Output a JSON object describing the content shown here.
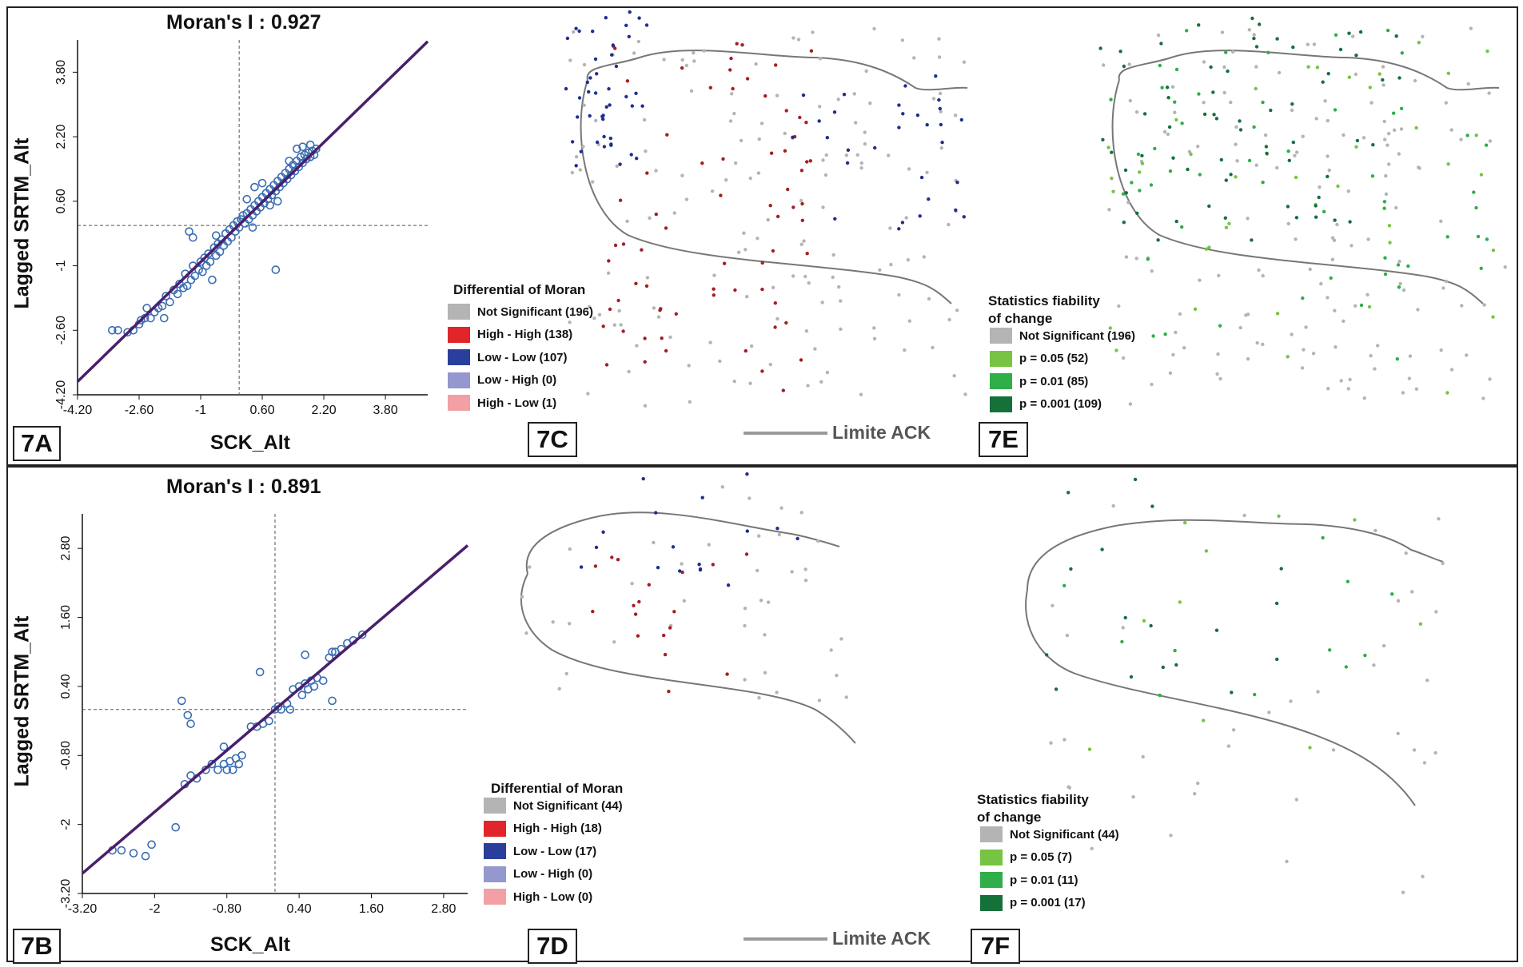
{
  "panels": {
    "a": {
      "tag": "7A",
      "moran_label": "Moran's I : 0.927",
      "xlabel": "SCK_Alt",
      "ylabel": "Lagged SRTM_Alt"
    },
    "b": {
      "tag": "7B",
      "moran_label": "Moran's I : 0.891",
      "xlabel": "SCK_Alt",
      "ylabel": "Lagged SRTM_Alt"
    },
    "c": {
      "tag": "7C",
      "legend_title": "Differential of Moran",
      "legend": [
        {
          "label": "Not Significant (196)",
          "color": "#b4b4b4"
        },
        {
          "label": "High - High (138)",
          "color": "#e0262b"
        },
        {
          "label": "Low - Low (107)",
          "color": "#2a3f9b"
        },
        {
          "label": "Low - High (0)",
          "color": "#9597cf"
        },
        {
          "label": "High - Low (1)",
          "color": "#f2a0a4"
        }
      ],
      "limit_label": "Limite ACK"
    },
    "d": {
      "tag": "7D",
      "legend_title": "Differential of Moran",
      "legend": [
        {
          "label": "Not Significant (44)",
          "color": "#b4b4b4"
        },
        {
          "label": "High - High (18)",
          "color": "#e0262b"
        },
        {
          "label": "Low - Low (17)",
          "color": "#2a3f9b"
        },
        {
          "label": "Low - High (0)",
          "color": "#9597cf"
        },
        {
          "label": "High - Low (0)",
          "color": "#f2a0a4"
        }
      ],
      "limit_label": "Limite ACK"
    },
    "e": {
      "tag": "7E",
      "legend_title_1": "Statistics fiability",
      "legend_title_2": "of change",
      "legend": [
        {
          "label": "Not Significant (196)",
          "color": "#b4b4b4"
        },
        {
          "label": "p = 0.05 (52)",
          "color": "#76c442"
        },
        {
          "label": "p = 0.01 (85)",
          "color": "#2fae49"
        },
        {
          "label": "p = 0.001 (109)",
          "color": "#16703a"
        }
      ]
    },
    "f": {
      "tag": "7F",
      "legend_title_1": "Statistics fiability",
      "legend_title_2": "of change",
      "legend": [
        {
          "label": "Not Significant (44)",
          "color": "#b4b4b4"
        },
        {
          "label": "p = 0.05 (7)",
          "color": "#76c442"
        },
        {
          "label": "p = 0.01 (11)",
          "color": "#2fae49"
        },
        {
          "label": "p = 0.001 (17)",
          "color": "#16703a"
        }
      ]
    }
  },
  "chart_data": [
    {
      "type": "scatter",
      "panel": "7A",
      "title": "Moran's I : 0.927",
      "xlabel": "SCK_Alt",
      "ylabel": "Lagged SRTM_Alt",
      "x_ticks": [
        "-4.20",
        "-2.60",
        "-1",
        "0.60",
        "2.20",
        "3.80"
      ],
      "y_ticks": [
        "-4.20",
        "-2.60",
        "-1",
        "0.60",
        "2.20",
        "3.80"
      ],
      "xlim": [
        -4.2,
        4.9
      ],
      "ylim": [
        -4.2,
        4.6
      ],
      "regression": {
        "slope": 0.927,
        "intercept": 0.02
      },
      "mean_lines": {
        "x": 0.0,
        "y": 0.0
      },
      "marker_color": "#3b6db3",
      "line_color": "#4a1f6b",
      "points": [
        [
          -3.3,
          -2.6
        ],
        [
          -3.15,
          -2.6
        ],
        [
          -2.9,
          -2.65
        ],
        [
          -2.75,
          -2.6
        ],
        [
          -2.6,
          -2.45
        ],
        [
          -2.55,
          -2.35
        ],
        [
          -2.45,
          -2.3
        ],
        [
          -2.4,
          -2.05
        ],
        [
          -2.3,
          -2.3
        ],
        [
          -2.2,
          -2.15
        ],
        [
          -2.1,
          -2.05
        ],
        [
          -2.0,
          -2.0
        ],
        [
          -1.95,
          -2.3
        ],
        [
          -1.9,
          -1.75
        ],
        [
          -1.8,
          -1.9
        ],
        [
          -1.7,
          -1.6
        ],
        [
          -1.6,
          -1.7
        ],
        [
          -1.55,
          -1.45
        ],
        [
          -1.45,
          -1.55
        ],
        [
          -1.4,
          -1.2
        ],
        [
          -1.35,
          -1.5
        ],
        [
          -1.25,
          -1.35
        ],
        [
          -1.2,
          -1.0
        ],
        [
          -1.15,
          -1.25
        ],
        [
          -1.05,
          -1.1
        ],
        [
          -1.0,
          -0.9
        ],
        [
          -0.95,
          -1.15
        ],
        [
          -0.9,
          -0.8
        ],
        [
          -0.85,
          -1.0
        ],
        [
          -0.8,
          -0.7
        ],
        [
          -0.75,
          -0.9
        ],
        [
          -0.7,
          -1.35
        ],
        [
          -0.65,
          -0.55
        ],
        [
          -0.6,
          -0.75
        ],
        [
          -0.55,
          -0.45
        ],
        [
          -0.5,
          -0.65
        ],
        [
          -0.45,
          -0.35
        ],
        [
          -0.4,
          -0.5
        ],
        [
          -0.35,
          -0.2
        ],
        [
          -0.3,
          -0.4
        ],
        [
          -0.25,
          -0.1
        ],
        [
          -0.2,
          -0.3
        ],
        [
          -0.15,
          0.0
        ],
        [
          -0.1,
          -0.15
        ],
        [
          -0.05,
          0.1
        ],
        [
          0.0,
          -0.05
        ],
        [
          0.05,
          0.15
        ],
        [
          0.1,
          0.25
        ],
        [
          0.15,
          0.05
        ],
        [
          0.2,
          0.3
        ],
        [
          0.25,
          0.15
        ],
        [
          0.3,
          0.4
        ],
        [
          0.35,
          0.25
        ],
        [
          0.4,
          0.5
        ],
        [
          0.45,
          0.35
        ],
        [
          0.5,
          0.6
        ],
        [
          0.55,
          0.45
        ],
        [
          0.6,
          0.7
        ],
        [
          0.65,
          0.55
        ],
        [
          0.7,
          0.8
        ],
        [
          0.75,
          0.65
        ],
        [
          0.8,
          0.9
        ],
        [
          0.85,
          0.75
        ],
        [
          0.9,
          1.0
        ],
        [
          0.95,
          0.85
        ],
        [
          1.0,
          1.1
        ],
        [
          1.05,
          0.95
        ],
        [
          1.1,
          1.2
        ],
        [
          1.15,
          1.05
        ],
        [
          1.2,
          1.3
        ],
        [
          1.25,
          1.15
        ],
        [
          1.3,
          1.4
        ],
        [
          1.35,
          1.25
        ],
        [
          1.4,
          1.5
        ],
        [
          1.45,
          1.35
        ],
        [
          1.5,
          1.6
        ],
        [
          1.55,
          1.45
        ],
        [
          1.6,
          1.7
        ],
        [
          1.65,
          1.55
        ],
        [
          1.7,
          1.75
        ],
        [
          1.75,
          1.65
        ],
        [
          1.8,
          1.8
        ],
        [
          1.85,
          1.7
        ],
        [
          1.9,
          1.85
        ],
        [
          1.95,
          1.75
        ],
        [
          2.0,
          1.9
        ],
        [
          1.5,
          1.9
        ],
        [
          1.3,
          1.6
        ],
        [
          1.0,
          0.6
        ],
        [
          0.8,
          0.5
        ],
        [
          -1.3,
          -0.15
        ],
        [
          -1.2,
          -0.3
        ],
        [
          0.95,
          -1.1
        ],
        [
          0.4,
          0.95
        ],
        [
          0.2,
          0.65
        ],
        [
          0.6,
          1.05
        ],
        [
          0.35,
          -0.05
        ],
        [
          -0.6,
          -0.25
        ],
        [
          1.65,
          1.95
        ],
        [
          1.85,
          2.0
        ]
      ]
    },
    {
      "type": "scatter",
      "panel": "7B",
      "title": "Moran's I : 0.891",
      "xlabel": "SCK_Alt",
      "ylabel": "Lagged SRTM_Alt",
      "x_ticks": [
        "-3.20",
        "-2",
        "-0.80",
        "0.40",
        "1.60",
        "2.80"
      ],
      "y_ticks": [
        "-3.20",
        "-2",
        "-0.80",
        "0.40",
        "1.60",
        "2.80"
      ],
      "xlim": [
        -3.2,
        3.2
      ],
      "ylim": [
        -3.2,
        3.4
      ],
      "regression": {
        "slope": 0.891,
        "intercept": 0.0
      },
      "mean_lines": {
        "x": 0.0,
        "y": 0.0
      },
      "marker_color": "#3b6db3",
      "line_color": "#4a1f6b",
      "points": [
        [
          -2.7,
          -2.45
        ],
        [
          -2.55,
          -2.45
        ],
        [
          -2.35,
          -2.5
        ],
        [
          -2.15,
          -2.55
        ],
        [
          -2.05,
          -2.35
        ],
        [
          -1.65,
          -2.05
        ],
        [
          -1.5,
          -1.3
        ],
        [
          -1.4,
          -1.15
        ],
        [
          -1.3,
          -1.2
        ],
        [
          -1.15,
          -1.05
        ],
        [
          -1.05,
          -0.95
        ],
        [
          -0.95,
          -1.05
        ],
        [
          -0.85,
          -0.95
        ],
        [
          -0.85,
          -0.65
        ],
        [
          -0.8,
          -1.05
        ],
        [
          -0.75,
          -0.9
        ],
        [
          -0.7,
          -1.05
        ],
        [
          -0.65,
          -0.85
        ],
        [
          -0.6,
          -0.95
        ],
        [
          -0.55,
          -0.8
        ],
        [
          -1.55,
          0.15
        ],
        [
          -1.45,
          -0.1
        ],
        [
          -1.4,
          -0.25
        ],
        [
          -0.4,
          -0.3
        ],
        [
          -0.3,
          -0.3
        ],
        [
          -0.2,
          -0.25
        ],
        [
          -0.1,
          -0.2
        ],
        [
          0.0,
          0.0
        ],
        [
          0.05,
          0.05
        ],
        [
          0.1,
          0.0
        ],
        [
          0.2,
          0.1
        ],
        [
          0.25,
          0.0
        ],
        [
          0.3,
          0.35
        ],
        [
          0.4,
          0.4
        ],
        [
          0.45,
          0.25
        ],
        [
          0.5,
          0.45
        ],
        [
          0.55,
          0.35
        ],
        [
          0.6,
          0.5
        ],
        [
          0.65,
          0.4
        ],
        [
          0.7,
          0.55
        ],
        [
          0.8,
          0.5
        ],
        [
          0.9,
          0.9
        ],
        [
          0.95,
          1.0
        ],
        [
          1.0,
          1.0
        ],
        [
          1.1,
          1.05
        ],
        [
          1.2,
          1.15
        ],
        [
          1.3,
          1.2
        ],
        [
          1.45,
          1.3
        ],
        [
          -0.25,
          0.65
        ],
        [
          0.5,
          0.95
        ],
        [
          0.95,
          0.15
        ]
      ]
    }
  ]
}
